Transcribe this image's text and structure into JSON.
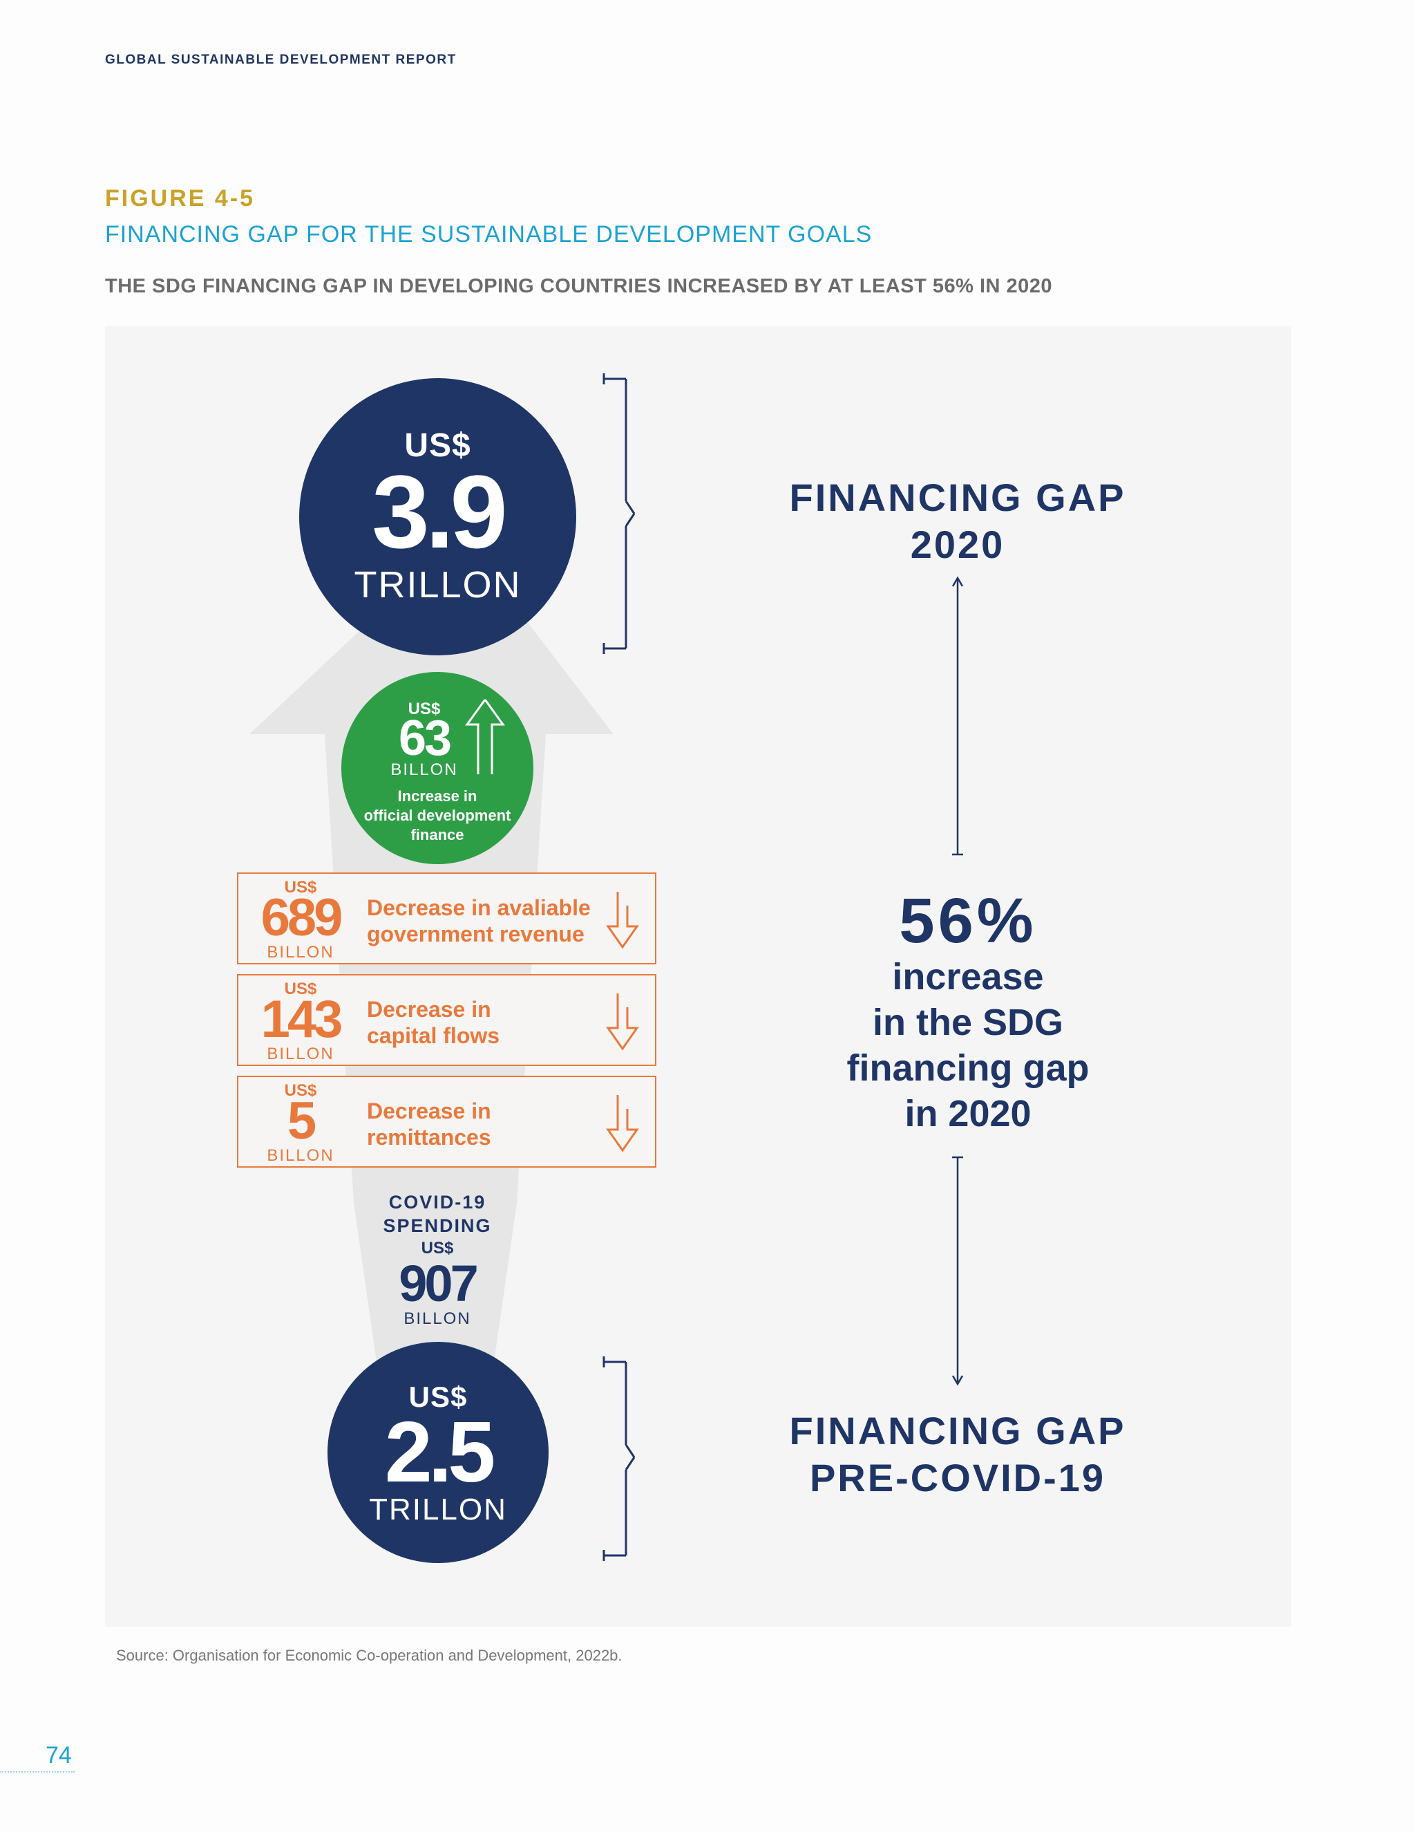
{
  "header": {
    "label": "GLOBAL SUSTAINABLE DEVELOPMENT REPORT"
  },
  "figure": {
    "number": "FIGURE 4-5",
    "title": "FINANCING GAP FOR THE SUSTAINABLE DEVELOPMENT GOALS",
    "subtitle": "THE SDG FINANCING GAP IN DEVELOPING COUNTRIES INCREASED BY AT LEAST 56% IN 2020"
  },
  "top_circle": {
    "currency": "US$",
    "value": "3.9",
    "unit": "TRILLON"
  },
  "green_circle": {
    "currency": "US$",
    "value": "63",
    "unit": "BILLON",
    "desc_line1": "Increase in",
    "desc_line2": "official development",
    "desc_line3": "finance"
  },
  "decreases": [
    {
      "currency": "US$",
      "value": "689",
      "unit": "BILLON",
      "line1": "Decrease in avaliable",
      "line2": "government revenue"
    },
    {
      "currency": "US$",
      "value": "143",
      "unit": "BILLON",
      "line1": "Decrease in",
      "line2": "capital flows"
    },
    {
      "currency": "US$",
      "value": "5",
      "unit": "BILLON",
      "line1": "Decrease in",
      "line2": "remittances"
    }
  ],
  "covid": {
    "line1": "COVID-19",
    "line2": "SPENDING",
    "currency": "US$",
    "value": "907",
    "unit": "BILLON"
  },
  "bottom_circle": {
    "currency": "US$",
    "value": "2.5",
    "unit": "TRILLON"
  },
  "right": {
    "gap_2020_line1": "FINANCING GAP",
    "gap_2020_line2": "2020",
    "pct": "56%",
    "pct_line1": "increase",
    "pct_line2": "in the SDG",
    "pct_line3": "financing gap",
    "pct_line4": "in 2020",
    "gap_pre_line1": "FINANCING GAP",
    "gap_pre_line2": "PRE-COVID-19"
  },
  "source": "Source: Organisation for Economic Co-operation and Development, 2022b.",
  "page_number": "74",
  "colors": {
    "navy": "#1f3566",
    "green": "#2e9e46",
    "orange": "#e8793c",
    "gold": "#c9a227",
    "cyan": "#1aa3d1"
  }
}
